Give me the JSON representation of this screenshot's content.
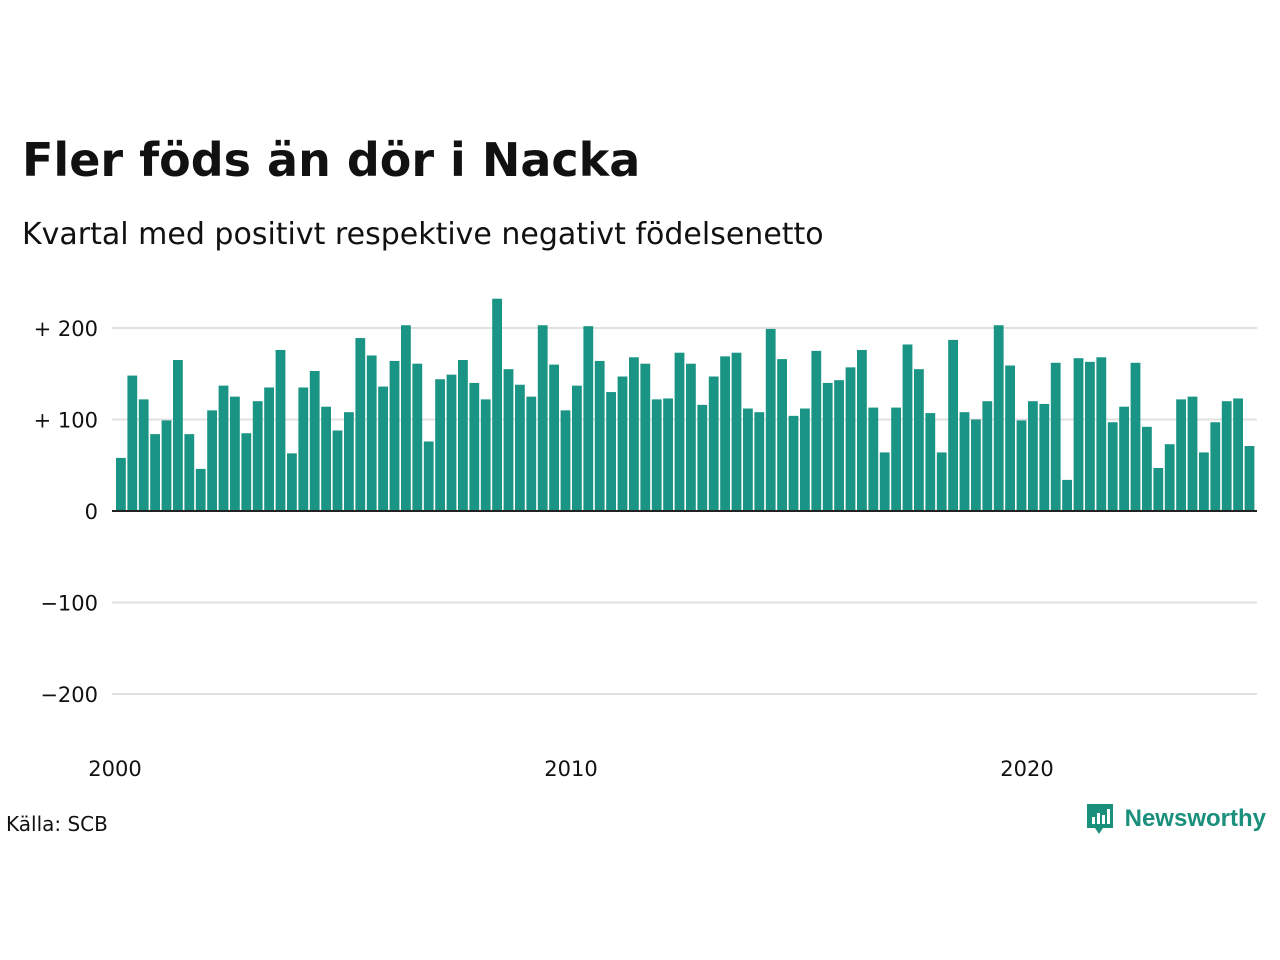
{
  "header": {
    "title": "Fler föds än dör i Nacka",
    "subtitle": "Kvartal med positivt respektive negativt födelsenetto"
  },
  "footer": {
    "source": "Källa: SCB",
    "brand": "Newsworthy",
    "brand_icon": "newsworthy-logo-icon"
  },
  "colors": {
    "bar": "#1a9484",
    "grid": "#e0e0e0",
    "zero_line": "#222222",
    "brand": "#1a8f7c"
  },
  "chart_data": {
    "type": "bar",
    "title": "Fler föds än dör i Nacka",
    "subtitle": "Kvartal med positivt respektive negativt födelsenetto",
    "x_start": 2000,
    "x_end": 2025,
    "quarters_per_year": 4,
    "xticks": [
      2000,
      2010,
      2020
    ],
    "xtick_labels": [
      "2000",
      "2010",
      "2020"
    ],
    "yticks": [
      200,
      100,
      0,
      -100,
      -200
    ],
    "ytick_labels": [
      "+ 200",
      "+ 100",
      "0",
      "−100",
      "−200"
    ],
    "ylim": [
      -240,
      240
    ],
    "grid": true,
    "values": [
      58,
      148,
      122,
      84,
      99,
      165,
      84,
      46,
      110,
      137,
      125,
      85,
      120,
      135,
      176,
      63,
      135,
      153,
      114,
      88,
      108,
      189,
      170,
      136,
      164,
      203,
      161,
      76,
      144,
      149,
      165,
      140,
      122,
      232,
      155,
      138,
      125,
      203,
      160,
      110,
      137,
      202,
      164,
      130,
      147,
      168,
      161,
      122,
      123,
      173,
      161,
      116,
      147,
      169,
      173,
      112,
      108,
      199,
      166,
      104,
      112,
      175,
      140,
      143,
      157,
      176,
      113,
      64,
      113,
      182,
      155,
      107,
      64,
      187,
      108,
      100,
      120,
      203,
      159,
      99,
      120,
      117,
      162,
      34,
      167,
      163,
      168,
      97,
      114,
      162,
      92,
      47,
      73,
      122,
      125,
      64,
      97,
      120,
      123,
      71
    ]
  }
}
